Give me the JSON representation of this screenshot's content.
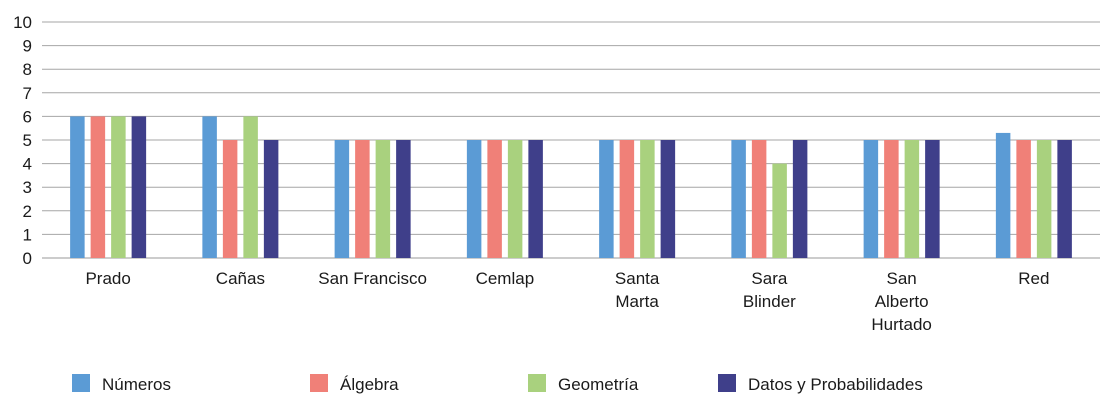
{
  "chart_data": {
    "type": "bar",
    "title": "",
    "xlabel": "",
    "ylabel": "",
    "ylim": [
      0,
      10
    ],
    "yticks": [
      "0",
      "1",
      "2",
      "3",
      "4",
      "5",
      "6",
      "7",
      "8",
      "9",
      "10"
    ],
    "grid": true,
    "legend_position": "bottom",
    "categories": [
      [
        "Prado"
      ],
      [
        "Cañas"
      ],
      [
        "San Francisco"
      ],
      [
        "Cemlap"
      ],
      [
        "Santa",
        "Marta"
      ],
      [
        "Sara",
        "Blinder"
      ],
      [
        "San",
        "Alberto",
        "Hurtado"
      ],
      [
        "Red"
      ]
    ],
    "series": [
      {
        "name": "Números",
        "color": "#5b9bd5",
        "values": [
          6,
          6,
          5,
          5,
          5,
          5,
          5,
          5.3
        ]
      },
      {
        "name": "Álgebra",
        "color": "#f08078",
        "values": [
          6,
          5,
          5,
          5,
          5,
          5,
          5,
          5
        ]
      },
      {
        "name": "Geometría",
        "color": "#a9d17e",
        "values": [
          6,
          6,
          5,
          5,
          5,
          4,
          5,
          5
        ]
      },
      {
        "name": "Datos y Probabilidades",
        "color": "#3f3f8a",
        "values": [
          6,
          5,
          5,
          5,
          5,
          5,
          5,
          5
        ]
      }
    ]
  }
}
